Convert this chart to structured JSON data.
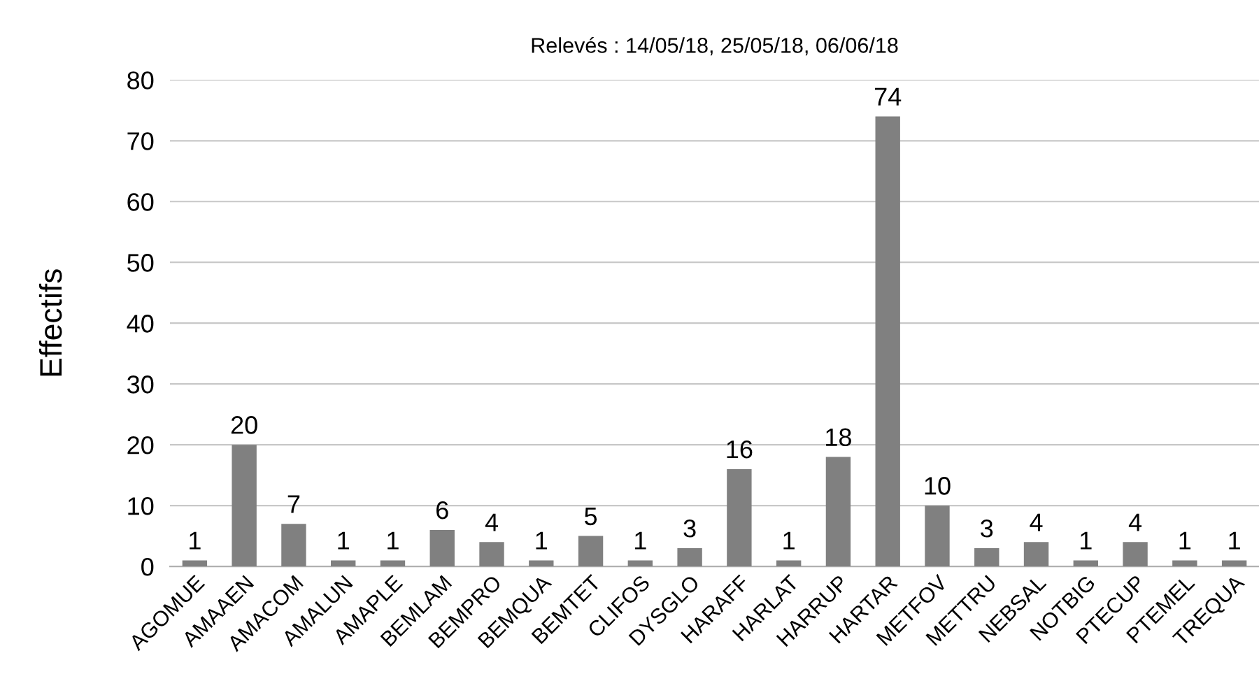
{
  "chart_data": {
    "type": "bar",
    "title": "Relevés : 14/05/18, 25/05/18, 06/06/18",
    "ylabel": "Effectifs",
    "categories": [
      "AGOMUE",
      "AMAAEN",
      "AMACOM",
      "AMALUN",
      "AMAPLE",
      "BEMLAM",
      "BEMPRO",
      "BEMQUA",
      "BEMTET",
      "CLIFOS",
      "DYSGLO",
      "HARAFF",
      "HARLAT",
      "HARRUP",
      "HARTAR",
      "METFOV",
      "METTRU",
      "NEBSAL",
      "NOTBIG",
      "PTECUP",
      "PTEMEL",
      "TREQUA"
    ],
    "values": [
      1,
      20,
      7,
      1,
      1,
      6,
      4,
      1,
      5,
      1,
      3,
      16,
      1,
      18,
      74,
      10,
      3,
      4,
      1,
      4,
      1,
      1
    ],
    "color": "#808080",
    "ylim": [
      0,
      80
    ],
    "yticks": [
      0,
      10,
      20,
      30,
      40,
      50,
      60,
      70,
      80
    ],
    "grid": "y",
    "data_labels": true
  }
}
